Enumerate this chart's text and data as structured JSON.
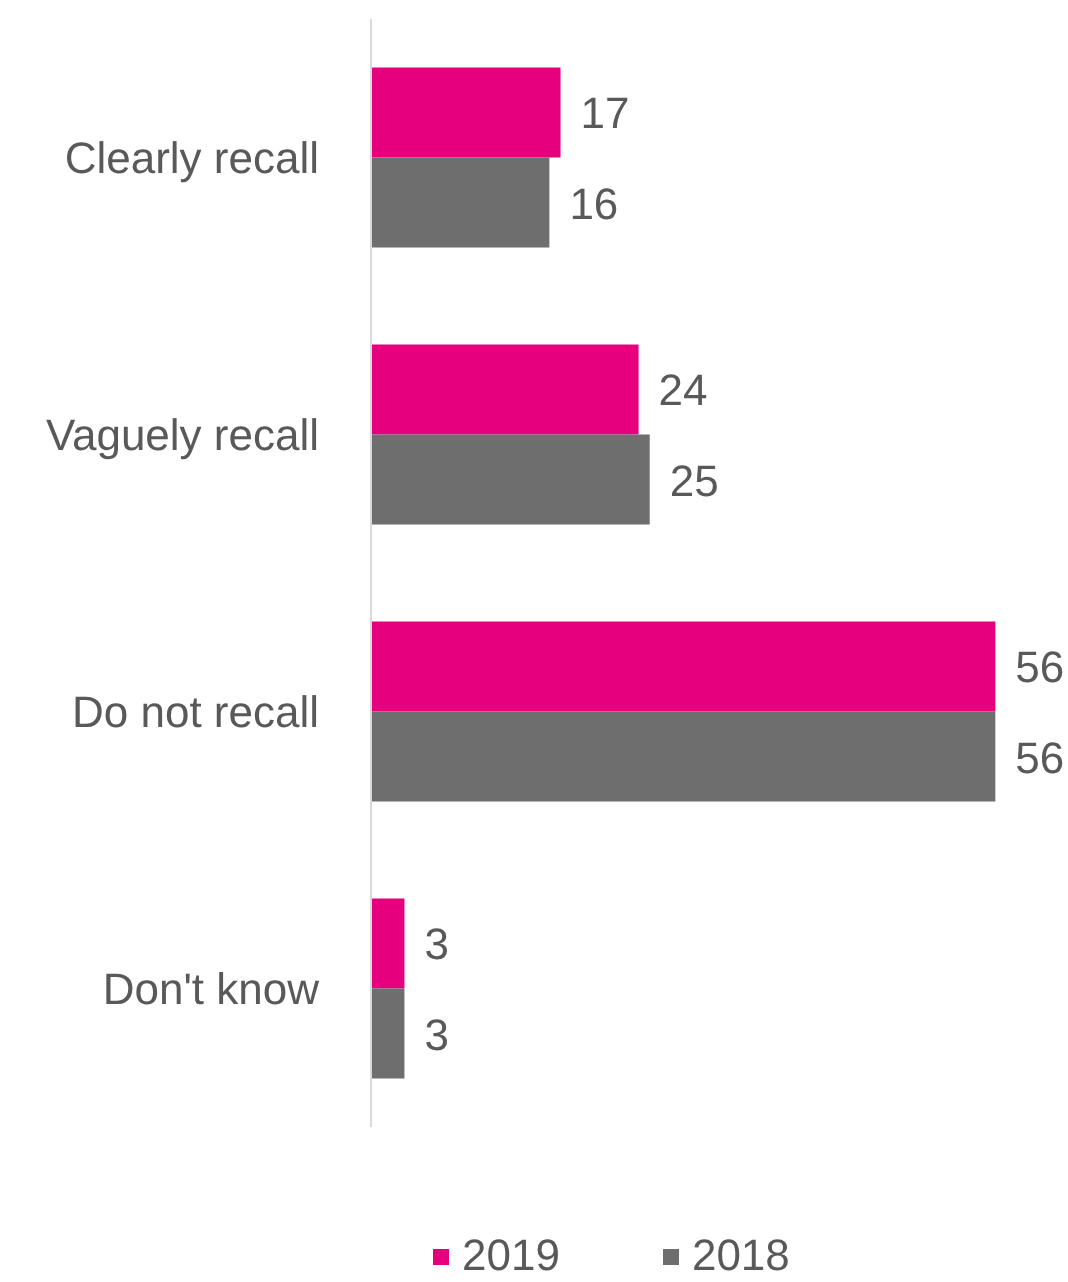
{
  "chart_data": {
    "type": "bar",
    "orientation": "horizontal",
    "categories": [
      "Clearly recall",
      "Vaguely recall",
      "Do not recall",
      "Don't know"
    ],
    "series": [
      {
        "name": "2019",
        "color": "#e6007e",
        "values": [
          17,
          24,
          56,
          3
        ]
      },
      {
        "name": "2018",
        "color": "#6e6e6e",
        "values": [
          16,
          25,
          56,
          3
        ]
      }
    ],
    "data_labels": true,
    "legend": "bottom",
    "grid": false
  }
}
